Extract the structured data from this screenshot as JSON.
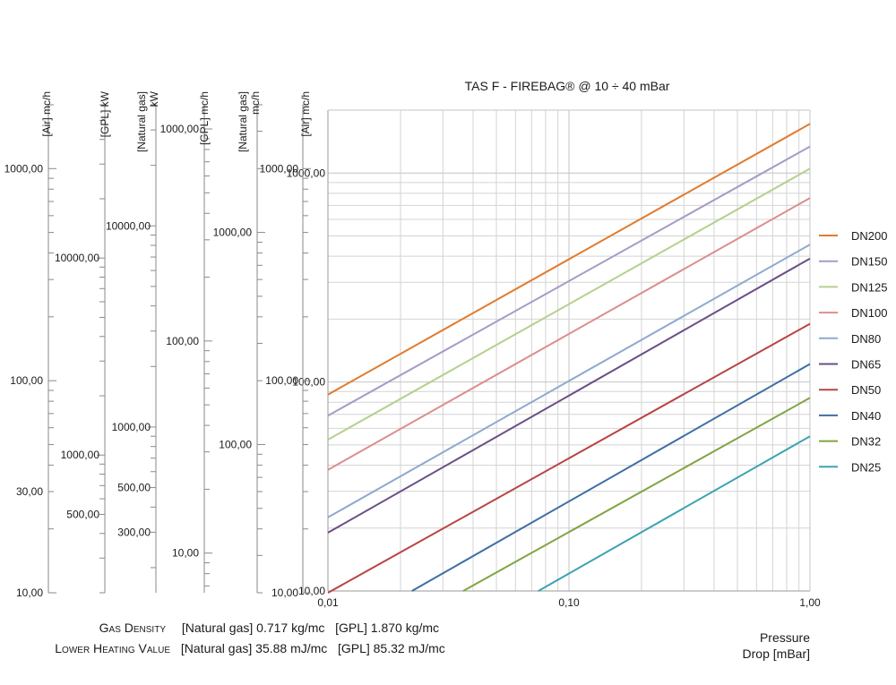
{
  "chart_data": {
    "type": "line",
    "title": "TAS F - FIREBAG® @ 10 ÷ 40 mBar",
    "xlabel": [
      "Pressure",
      "Drop [mBar]"
    ],
    "x_scale": "log",
    "y_scale": "log",
    "xlim": [
      0.01,
      1.0
    ],
    "ylim": [
      10,
      2000
    ],
    "x_ticks": [
      {
        "value": 0.01,
        "label": "0,01"
      },
      {
        "value": 0.1,
        "label": "0,10"
      },
      {
        "value": 1.0,
        "label": "1,00"
      }
    ],
    "y_ticks": [
      {
        "value": 10,
        "label": "10,00"
      },
      {
        "value": 100,
        "label": "100,00"
      },
      {
        "value": 1000,
        "label": "1000,00"
      }
    ],
    "grid": true,
    "legend_position": "right",
    "series": [
      {
        "name": "DN200",
        "color": "#e07b2e",
        "x": [
          0.01,
          1.0
        ],
        "y": [
          87,
          1720
        ]
      },
      {
        "name": "DN150",
        "color": "#a89bc6",
        "x": [
          0.01,
          1.0
        ],
        "y": [
          69,
          1340
        ]
      },
      {
        "name": "DN125",
        "color": "#b4d08e",
        "x": [
          0.01,
          1.0
        ],
        "y": [
          53,
          1050
        ]
      },
      {
        "name": "DN100",
        "color": "#db8e8e",
        "x": [
          0.01,
          1.0
        ],
        "y": [
          38,
          760
        ]
      },
      {
        "name": "DN80",
        "color": "#8ea9cf",
        "x": [
          0.01,
          1.0
        ],
        "y": [
          22.5,
          455
        ]
      },
      {
        "name": "DN65",
        "color": "#6a4f86",
        "x": [
          0.01,
          1.0
        ],
        "y": [
          19,
          390
        ]
      },
      {
        "name": "DN50",
        "color": "#b84444",
        "x": [
          0.01,
          1.0
        ],
        "y": [
          9.8,
          190
        ]
      },
      {
        "name": "DN40",
        "color": "#3f6ea3",
        "x": [
          0.0223,
          1.0
        ],
        "y": [
          10,
          122
        ]
      },
      {
        "name": "DN32",
        "color": "#82a443",
        "x": [
          0.0364,
          1.0
        ],
        "y": [
          10,
          84
        ]
      },
      {
        "name": "DN25",
        "color": "#3ea2b3",
        "x": [
          0.0746,
          1.0
        ],
        "y": [
          10,
          55
        ]
      }
    ],
    "side_scales": [
      {
        "title": [
          "[Air] mc/h"
        ],
        "ticks": [
          {
            "value": 1000,
            "label": "1000,00"
          },
          {
            "value": 100,
            "label": "100,00"
          },
          {
            "value": 30,
            "label": "30,00"
          },
          {
            "value": 10,
            "label": "10,00"
          }
        ]
      },
      {
        "title": [
          "[GPL] kW"
        ],
        "ticks": [
          {
            "value": 10000,
            "label": "10000,00"
          },
          {
            "value": 1000,
            "label": "1000,00"
          },
          {
            "value": 500,
            "label": "500,00"
          }
        ]
      },
      {
        "title": [
          "[Natural gas]",
          "kW"
        ],
        "ticks": [
          {
            "value": 10000,
            "label": "10000,00"
          },
          {
            "value": 1000,
            "label": "1000,00"
          },
          {
            "value": 500,
            "label": "500,00"
          },
          {
            "value": 300,
            "label": "300,00"
          }
        ]
      },
      {
        "title": [
          "[GPL] mc/h"
        ],
        "ticks": [
          {
            "value": 1000,
            "label": "1000,00"
          },
          {
            "value": 100,
            "label": "100,00"
          },
          {
            "value": 10,
            "label": "10,00"
          }
        ]
      },
      {
        "title": [
          "[Natural gas]",
          "mc/h"
        ],
        "ticks": [
          {
            "value": 1000,
            "label": "1000,00"
          },
          {
            "value": 100,
            "label": "100,00"
          }
        ]
      },
      {
        "title": [
          "[Air] mc/h"
        ],
        "ticks": [
          {
            "value": 1000,
            "label": "1000,00"
          },
          {
            "value": 100,
            "label": "100,00"
          },
          {
            "value": 10,
            "label": "10,00"
          }
        ]
      }
    ]
  },
  "footer": {
    "density_label": "Gas Density",
    "density_values": "[Natural gas] 0.717 kg/mc   [GPL] 1.870 kg/mc",
    "heating_label": "Lower Heating Value",
    "heating_values": "[Natural gas] 35.88 mJ/mc   [GPL] 85.32 mJ/mc"
  }
}
